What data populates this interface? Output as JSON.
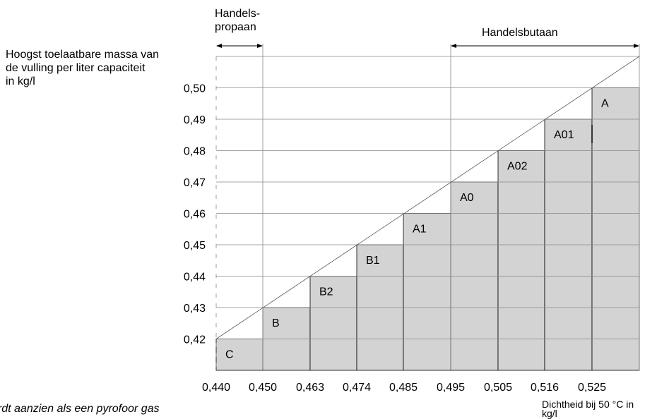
{
  "chart_data": {
    "type": "bar",
    "y_axis_label": [
      "Hoogst toelaatbare massa van",
      "de vulling per liter capaciteit",
      "in kg/l"
    ],
    "x_axis_label": [
      "Dichtheid bij 50 °C in",
      "kg/l"
    ],
    "x_ticks": [
      "0,440",
      "0,450",
      "0,463",
      "0,474",
      "0,485",
      "0,495",
      "0,505",
      "0,516",
      "0,525"
    ],
    "y_ticks": [
      "0,42",
      "0,43",
      "0,44",
      "0,45",
      "0,46",
      "0,47",
      "0,48",
      "0,49",
      "0,50"
    ],
    "ylim": [
      0.41,
      0.51
    ],
    "bars": [
      {
        "label": "C",
        "value": 0.42
      },
      {
        "label": "B",
        "value": 0.43
      },
      {
        "label": "B2",
        "value": 0.44
      },
      {
        "label": "B1",
        "value": 0.45
      },
      {
        "label": "A1",
        "value": 0.46
      },
      {
        "label": "A0",
        "value": 0.47
      },
      {
        "label": "A02",
        "value": 0.48
      },
      {
        "label": "A01",
        "value": 0.49
      },
      {
        "label": "A",
        "value": 0.5
      }
    ],
    "ranges": [
      {
        "label": [
          "Handels-",
          "propaan"
        ],
        "from": "0,440",
        "to": "0,450"
      },
      {
        "label": [
          "Handelsbutaan"
        ],
        "from": "0,495",
        "to": "end"
      }
    ],
    "bar_color": "#d3d3d3",
    "grid": true
  },
  "footnote": "ordt aanzien als een pyrofoor gas"
}
